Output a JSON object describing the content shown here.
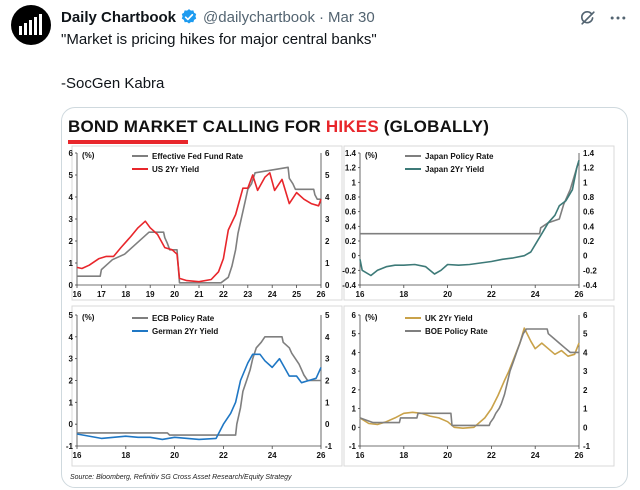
{
  "author": {
    "name": "Daily Chartbook",
    "handle": "@dailychartbook",
    "separator": "·",
    "date": "Mar 30"
  },
  "tweet": {
    "line1": "\"Market is pricing hikes for major central banks\"",
    "line2": "-SocGen Kabra"
  },
  "icons": {
    "avatar": "chart-bars-logo-icon",
    "verified": "verified-badge-icon",
    "grok": "grok-icon",
    "more": "more-icon"
  },
  "colors": {
    "verified": "#1d9bf0",
    "title_highlight": "#e8262b",
    "grey_series": "#7f7f7f",
    "red_series": "#e8262b",
    "teal_series": "#3d7a78",
    "blue_series": "#1f77c4",
    "gold_series": "#c9a24a"
  },
  "media": {
    "title_part1": "BOND MARKET CALLING FOR ",
    "title_highlight": "HIKES",
    "title_part2": " (GLOBALLY)",
    "source": "Source: Bloomberg, Refinitiv SG Cross Asset Research/Equity Strategy"
  },
  "chart_data": [
    {
      "type": "line",
      "title": "",
      "unit": "(%)",
      "xlim": [
        16,
        26
      ],
      "ylim": [
        0,
        6
      ],
      "xticks": [
        "16",
        "17",
        "18",
        "19",
        "20",
        "21",
        "22",
        "23",
        "24",
        "25",
        "26"
      ],
      "yticks": [
        "0",
        "1",
        "2",
        "3",
        "4",
        "5",
        "6"
      ],
      "legend_position": "top",
      "series": [
        {
          "name": "Effective Fed Fund Rate",
          "color": "#7f7f7f",
          "points": [
            [
              16.0,
              0.4
            ],
            [
              16.2,
              0.4
            ],
            [
              16.95,
              0.4
            ],
            [
              17.0,
              0.7
            ],
            [
              17.2,
              0.9
            ],
            [
              17.45,
              1.15
            ],
            [
              17.95,
              1.4
            ],
            [
              18.2,
              1.65
            ],
            [
              18.45,
              1.9
            ],
            [
              18.7,
              2.15
            ],
            [
              18.95,
              2.4
            ],
            [
              19.55,
              2.4
            ],
            [
              19.6,
              2.15
            ],
            [
              19.7,
              1.9
            ],
            [
              19.8,
              1.6
            ],
            [
              20.1,
              1.6
            ],
            [
              20.2,
              0.1
            ],
            [
              21.9,
              0.1
            ],
            [
              22.2,
              0.35
            ],
            [
              22.35,
              0.85
            ],
            [
              22.5,
              1.6
            ],
            [
              22.6,
              2.35
            ],
            [
              22.75,
              3.1
            ],
            [
              22.9,
              3.85
            ],
            [
              23.0,
              4.35
            ],
            [
              23.15,
              4.6
            ],
            [
              23.3,
              5.1
            ],
            [
              24.65,
              5.35
            ],
            [
              24.7,
              4.85
            ],
            [
              24.85,
              4.6
            ],
            [
              24.95,
              4.35
            ],
            [
              25.7,
              4.35
            ],
            [
              25.75,
              4.1
            ],
            [
              25.85,
              3.9
            ],
            [
              26.0,
              3.9
            ]
          ]
        },
        {
          "name": "US 2Yr Yield",
          "color": "#e8262b",
          "points": [
            [
              16.0,
              0.8
            ],
            [
              16.2,
              0.75
            ],
            [
              16.5,
              0.9
            ],
            [
              16.9,
              1.2
            ],
            [
              17.2,
              1.3
            ],
            [
              17.5,
              1.3
            ],
            [
              17.8,
              1.7
            ],
            [
              18.2,
              2.2
            ],
            [
              18.5,
              2.6
            ],
            [
              18.8,
              2.9
            ],
            [
              19.0,
              2.6
            ],
            [
              19.3,
              2.3
            ],
            [
              19.6,
              1.7
            ],
            [
              19.9,
              1.6
            ],
            [
              20.1,
              1.4
            ],
            [
              20.2,
              0.3
            ],
            [
              20.5,
              0.2
            ],
            [
              21.0,
              0.15
            ],
            [
              21.5,
              0.25
            ],
            [
              21.8,
              0.6
            ],
            [
              22.0,
              1.2
            ],
            [
              22.2,
              2.5
            ],
            [
              22.5,
              3.2
            ],
            [
              22.8,
              4.4
            ],
            [
              23.0,
              4.4
            ],
            [
              23.2,
              5.0
            ],
            [
              23.4,
              4.3
            ],
            [
              23.7,
              4.9
            ],
            [
              23.9,
              5.1
            ],
            [
              24.1,
              4.3
            ],
            [
              24.4,
              4.8
            ],
            [
              24.7,
              3.7
            ],
            [
              25.0,
              4.2
            ],
            [
              25.3,
              3.9
            ],
            [
              25.6,
              3.7
            ],
            [
              25.9,
              3.6
            ],
            [
              26.0,
              3.9
            ]
          ]
        }
      ]
    },
    {
      "type": "line",
      "title": "",
      "unit": "(%)",
      "xlim": [
        16,
        26
      ],
      "ylim": [
        -0.4,
        1.4
      ],
      "xticks": [
        "16",
        "18",
        "20",
        "22",
        "24",
        "26"
      ],
      "yticks": [
        "-0.4",
        "-0.2",
        "0",
        "0.2",
        "0.4",
        "0.6",
        "0.8",
        "1",
        "1.2",
        "1.4"
      ],
      "legend_position": "top",
      "series": [
        {
          "name": "Japan Policy Rate",
          "color": "#7f7f7f",
          "points": [
            [
              16.0,
              0.3
            ],
            [
              24.2,
              0.3
            ],
            [
              24.25,
              0.38
            ],
            [
              24.6,
              0.45
            ],
            [
              25.1,
              0.5
            ],
            [
              25.3,
              0.7
            ],
            [
              25.6,
              0.9
            ],
            [
              25.9,
              1.2
            ],
            [
              26.0,
              1.3
            ]
          ]
        },
        {
          "name": "Japan 2Yr Yield",
          "color": "#3d7a78",
          "points": [
            [
              16.0,
              -0.05
            ],
            [
              16.1,
              -0.2
            ],
            [
              16.5,
              -0.27
            ],
            [
              16.8,
              -0.2
            ],
            [
              17.2,
              -0.15
            ],
            [
              17.6,
              -0.13
            ],
            [
              18.0,
              -0.13
            ],
            [
              18.5,
              -0.12
            ],
            [
              19.0,
              -0.15
            ],
            [
              19.4,
              -0.25
            ],
            [
              19.7,
              -0.2
            ],
            [
              20.0,
              -0.12
            ],
            [
              20.5,
              -0.13
            ],
            [
              21.0,
              -0.12
            ],
            [
              21.5,
              -0.1
            ],
            [
              22.0,
              -0.08
            ],
            [
              22.5,
              -0.05
            ],
            [
              23.0,
              -0.03
            ],
            [
              23.5,
              0.0
            ],
            [
              23.8,
              0.05
            ],
            [
              24.0,
              0.15
            ],
            [
              24.3,
              0.3
            ],
            [
              24.6,
              0.45
            ],
            [
              24.9,
              0.55
            ],
            [
              25.1,
              0.68
            ],
            [
              25.4,
              0.75
            ],
            [
              25.7,
              0.9
            ],
            [
              25.9,
              1.2
            ],
            [
              26.0,
              1.3
            ]
          ]
        }
      ]
    },
    {
      "type": "line",
      "title": "",
      "unit": "(%)",
      "xlim": [
        16,
        26
      ],
      "ylim": [
        -1,
        5
      ],
      "xticks": [
        "16",
        "18",
        "20",
        "22",
        "24",
        "26"
      ],
      "yticks": [
        "-1",
        "0",
        "1",
        "2",
        "3",
        "4",
        "5"
      ],
      "legend_position": "top",
      "series": [
        {
          "name": "ECB Policy Rate",
          "color": "#7f7f7f",
          "points": [
            [
              16.0,
              -0.4
            ],
            [
              19.7,
              -0.4
            ],
            [
              19.8,
              -0.5
            ],
            [
              22.5,
              -0.5
            ],
            [
              22.55,
              0.0
            ],
            [
              22.7,
              0.75
            ],
            [
              22.8,
              1.5
            ],
            [
              22.95,
              2.0
            ],
            [
              23.1,
              2.5
            ],
            [
              23.2,
              3.0
            ],
            [
              23.35,
              3.5
            ],
            [
              23.55,
              3.75
            ],
            [
              23.7,
              4.0
            ],
            [
              24.4,
              4.0
            ],
            [
              24.45,
              3.75
            ],
            [
              24.7,
              3.5
            ],
            [
              24.8,
              3.25
            ],
            [
              24.95,
              3.0
            ],
            [
              25.1,
              2.75
            ],
            [
              25.2,
              2.5
            ],
            [
              25.3,
              2.25
            ],
            [
              25.45,
              2.0
            ],
            [
              26.0,
              2.0
            ]
          ]
        },
        {
          "name": "German 2Yr Yield",
          "color": "#1f77c4",
          "points": [
            [
              16.0,
              -0.45
            ],
            [
              17.0,
              -0.65
            ],
            [
              18.0,
              -0.55
            ],
            [
              18.5,
              -0.6
            ],
            [
              19.0,
              -0.6
            ],
            [
              19.5,
              -0.7
            ],
            [
              20.0,
              -0.6
            ],
            [
              21.0,
              -0.7
            ],
            [
              21.7,
              -0.65
            ],
            [
              22.0,
              0.0
            ],
            [
              22.3,
              0.5
            ],
            [
              22.5,
              1.0
            ],
            [
              22.7,
              2.0
            ],
            [
              23.0,
              2.8
            ],
            [
              23.2,
              3.2
            ],
            [
              23.5,
              3.2
            ],
            [
              23.7,
              2.9
            ],
            [
              24.0,
              2.6
            ],
            [
              24.3,
              3.0
            ],
            [
              24.5,
              2.6
            ],
            [
              24.7,
              2.2
            ],
            [
              25.0,
              2.2
            ],
            [
              25.2,
              1.9
            ],
            [
              25.5,
              2.0
            ],
            [
              25.8,
              2.1
            ],
            [
              26.0,
              2.6
            ]
          ]
        }
      ]
    },
    {
      "type": "line",
      "title": "",
      "unit": "(%)",
      "xlim": [
        16,
        26
      ],
      "ylim": [
        -1,
        6
      ],
      "xticks": [
        "16",
        "18",
        "20",
        "22",
        "24",
        "26"
      ],
      "yticks": [
        "-1",
        "0",
        "1",
        "2",
        "3",
        "4",
        "5",
        "6"
      ],
      "legend_position": "top",
      "series": [
        {
          "name": "UK 2Yr Yield",
          "color": "#c9a24a",
          "points": [
            [
              16.0,
              0.5
            ],
            [
              16.4,
              0.2
            ],
            [
              16.8,
              0.15
            ],
            [
              17.2,
              0.3
            ],
            [
              17.6,
              0.5
            ],
            [
              18.0,
              0.75
            ],
            [
              18.4,
              0.8
            ],
            [
              18.8,
              0.75
            ],
            [
              19.2,
              0.6
            ],
            [
              19.6,
              0.5
            ],
            [
              20.0,
              0.3
            ],
            [
              20.3,
              0.0
            ],
            [
              20.7,
              -0.05
            ],
            [
              21.2,
              0.0
            ],
            [
              21.7,
              0.5
            ],
            [
              22.0,
              1.0
            ],
            [
              22.3,
              1.7
            ],
            [
              22.6,
              2.5
            ],
            [
              22.8,
              3.0
            ],
            [
              23.0,
              3.6
            ],
            [
              23.3,
              4.5
            ],
            [
              23.5,
              5.3
            ],
            [
              23.8,
              4.6
            ],
            [
              24.0,
              4.2
            ],
            [
              24.3,
              4.5
            ],
            [
              24.6,
              4.2
            ],
            [
              24.9,
              3.9
            ],
            [
              25.2,
              4.1
            ],
            [
              25.5,
              3.8
            ],
            [
              25.8,
              3.9
            ],
            [
              26.0,
              4.5
            ]
          ]
        },
        {
          "name": "BOE Policy Rate",
          "color": "#7f7f7f",
          "points": [
            [
              16.0,
              0.5
            ],
            [
              16.6,
              0.25
            ],
            [
              17.8,
              0.25
            ],
            [
              17.85,
              0.5
            ],
            [
              18.6,
              0.5
            ],
            [
              18.65,
              0.75
            ],
            [
              20.15,
              0.75
            ],
            [
              20.2,
              0.1
            ],
            [
              21.9,
              0.1
            ],
            [
              21.95,
              0.25
            ],
            [
              22.1,
              0.5
            ],
            [
              22.2,
              0.75
            ],
            [
              22.35,
              1.0
            ],
            [
              22.45,
              1.25
            ],
            [
              22.6,
              1.75
            ],
            [
              22.7,
              2.25
            ],
            [
              22.85,
              3.0
            ],
            [
              23.0,
              3.5
            ],
            [
              23.15,
              4.0
            ],
            [
              23.3,
              4.5
            ],
            [
              23.45,
              5.0
            ],
            [
              23.6,
              5.25
            ],
            [
              24.55,
              5.25
            ],
            [
              24.6,
              5.0
            ],
            [
              24.85,
              4.75
            ],
            [
              25.1,
              4.5
            ],
            [
              25.35,
              4.25
            ],
            [
              25.6,
              4.0
            ],
            [
              26.0,
              4.0
            ]
          ]
        }
      ]
    }
  ]
}
